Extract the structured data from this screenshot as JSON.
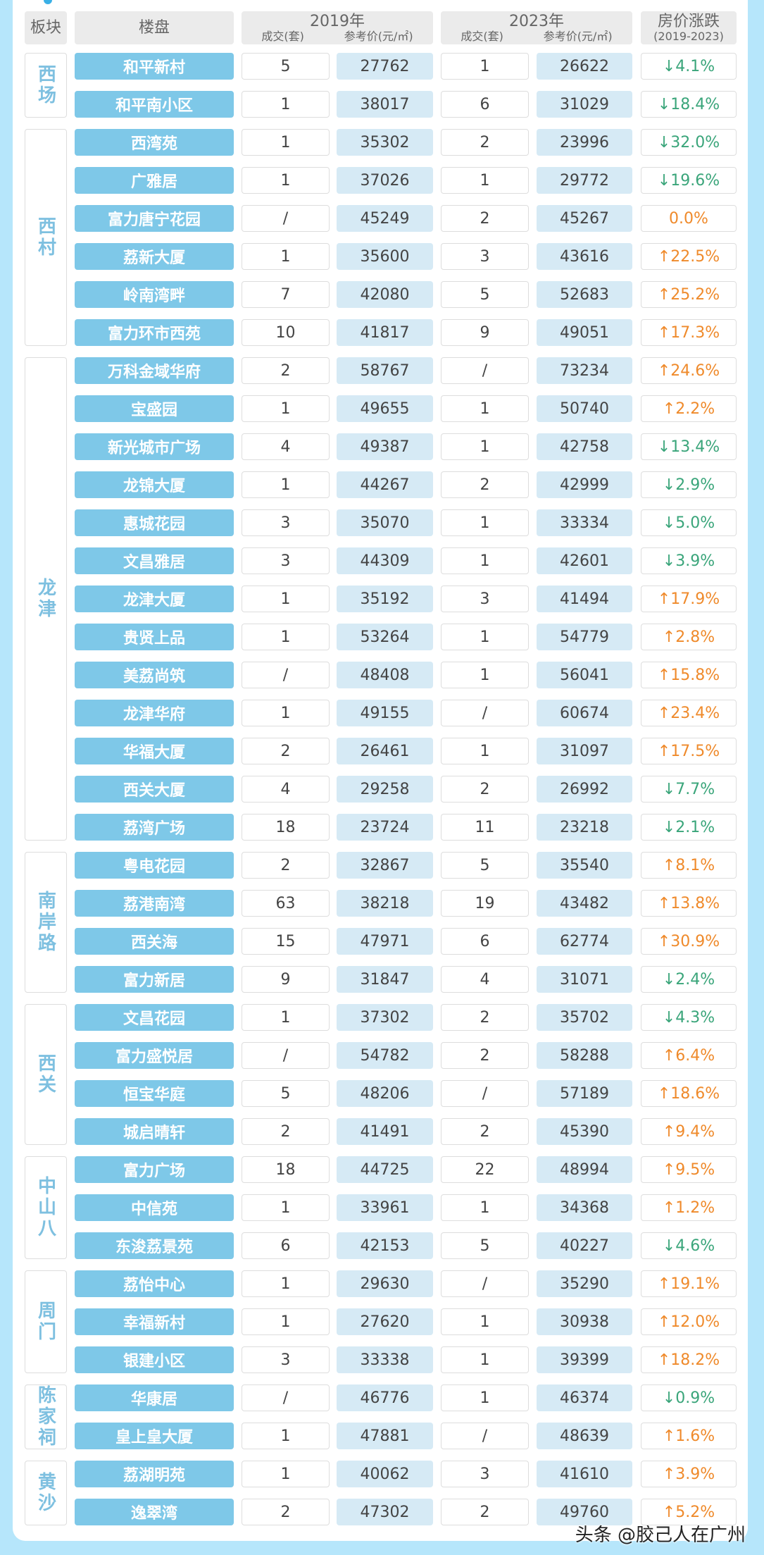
{
  "header": {
    "district": "板块",
    "estate": "楼盘",
    "y2019": "2019年",
    "y2023": "2023年",
    "deals": "成交(套)",
    "price": "参考价(元/㎡)",
    "change": "房价涨跌",
    "change_range": "(2019-2023)"
  },
  "colors": {
    "down": "#3aa57a",
    "up": "#ef8a2b",
    "name_bg": "#7ec8e8",
    "price_bg": "#d6eaf5"
  },
  "groups": [
    {
      "district": "西场",
      "rows": [
        {
          "name": "和平新村",
          "d2019": "5",
          "p2019": "27762",
          "d2023": "1",
          "p2023": "26622",
          "change": "↓4.1%",
          "dir": "down"
        },
        {
          "name": "和平南小区",
          "d2019": "1",
          "p2019": "38017",
          "d2023": "6",
          "p2023": "31029",
          "change": "↓18.4%",
          "dir": "down"
        }
      ]
    },
    {
      "district": "西村",
      "rows": [
        {
          "name": "西湾苑",
          "d2019": "1",
          "p2019": "35302",
          "d2023": "2",
          "p2023": "23996",
          "change": "↓32.0%",
          "dir": "down"
        },
        {
          "name": "广雅居",
          "d2019": "1",
          "p2019": "37026",
          "d2023": "1",
          "p2023": "29772",
          "change": "↓19.6%",
          "dir": "down"
        },
        {
          "name": "富力唐宁花园",
          "d2019": "/",
          "p2019": "45249",
          "d2023": "2",
          "p2023": "45267",
          "change": "0.0%",
          "dir": "flat"
        },
        {
          "name": "荔新大厦",
          "d2019": "1",
          "p2019": "35600",
          "d2023": "3",
          "p2023": "43616",
          "change": "↑22.5%",
          "dir": "up"
        },
        {
          "name": "岭南湾畔",
          "d2019": "7",
          "p2019": "42080",
          "d2023": "5",
          "p2023": "52683",
          "change": "↑25.2%",
          "dir": "up"
        },
        {
          "name": "富力环市西苑",
          "d2019": "10",
          "p2019": "41817",
          "d2023": "9",
          "p2023": "49051",
          "change": "↑17.3%",
          "dir": "up"
        }
      ]
    },
    {
      "district": "龙津",
      "rows": [
        {
          "name": "万科金域华府",
          "d2019": "2",
          "p2019": "58767",
          "d2023": "/",
          "p2023": "73234",
          "change": "↑24.6%",
          "dir": "up"
        },
        {
          "name": "宝盛园",
          "d2019": "1",
          "p2019": "49655",
          "d2023": "1",
          "p2023": "50740",
          "change": "↑2.2%",
          "dir": "up"
        },
        {
          "name": "新光城市广场",
          "d2019": "4",
          "p2019": "49387",
          "d2023": "1",
          "p2023": "42758",
          "change": "↓13.4%",
          "dir": "down"
        },
        {
          "name": "龙锦大厦",
          "d2019": "1",
          "p2019": "44267",
          "d2023": "2",
          "p2023": "42999",
          "change": "↓2.9%",
          "dir": "down"
        },
        {
          "name": "惠城花园",
          "d2019": "3",
          "p2019": "35070",
          "d2023": "1",
          "p2023": "33334",
          "change": "↓5.0%",
          "dir": "down"
        },
        {
          "name": "文昌雅居",
          "d2019": "3",
          "p2019": "44309",
          "d2023": "1",
          "p2023": "42601",
          "change": "↓3.9%",
          "dir": "down"
        },
        {
          "name": "龙津大厦",
          "d2019": "1",
          "p2019": "35192",
          "d2023": "3",
          "p2023": "41494",
          "change": "↑17.9%",
          "dir": "up"
        },
        {
          "name": "贵贤上品",
          "d2019": "1",
          "p2019": "53264",
          "d2023": "1",
          "p2023": "54779",
          "change": "↑2.8%",
          "dir": "up"
        },
        {
          "name": "美荔尚筑",
          "d2019": "/",
          "p2019": "48408",
          "d2023": "1",
          "p2023": "56041",
          "change": "↑15.8%",
          "dir": "up"
        },
        {
          "name": "龙津华府",
          "d2019": "1",
          "p2019": "49155",
          "d2023": "/",
          "p2023": "60674",
          "change": "↑23.4%",
          "dir": "up"
        },
        {
          "name": "华福大厦",
          "d2019": "2",
          "p2019": "26461",
          "d2023": "1",
          "p2023": "31097",
          "change": "↑17.5%",
          "dir": "up"
        },
        {
          "name": "西关大厦",
          "d2019": "4",
          "p2019": "29258",
          "d2023": "2",
          "p2023": "26992",
          "change": "↓7.7%",
          "dir": "down"
        },
        {
          "name": "荔湾广场",
          "d2019": "18",
          "p2019": "23724",
          "d2023": "11",
          "p2023": "23218",
          "change": "↓2.1%",
          "dir": "down"
        }
      ]
    },
    {
      "district": "南岸路",
      "rows": [
        {
          "name": "粤电花园",
          "d2019": "2",
          "p2019": "32867",
          "d2023": "5",
          "p2023": "35540",
          "change": "↑8.1%",
          "dir": "up"
        },
        {
          "name": "荔港南湾",
          "d2019": "63",
          "p2019": "38218",
          "d2023": "19",
          "p2023": "43482",
          "change": "↑13.8%",
          "dir": "up"
        },
        {
          "name": "西关海",
          "d2019": "15",
          "p2019": "47971",
          "d2023": "6",
          "p2023": "62774",
          "change": "↑30.9%",
          "dir": "up"
        },
        {
          "name": "富力新居",
          "d2019": "9",
          "p2019": "31847",
          "d2023": "4",
          "p2023": "31071",
          "change": "↓2.4%",
          "dir": "down"
        }
      ]
    },
    {
      "district": "西关",
      "rows": [
        {
          "name": "文昌花园",
          "d2019": "1",
          "p2019": "37302",
          "d2023": "2",
          "p2023": "35702",
          "change": "↓4.3%",
          "dir": "down"
        },
        {
          "name": "富力盛悦居",
          "d2019": "/",
          "p2019": "54782",
          "d2023": "2",
          "p2023": "58288",
          "change": "↑6.4%",
          "dir": "up"
        },
        {
          "name": "恒宝华庭",
          "d2019": "5",
          "p2019": "48206",
          "d2023": "/",
          "p2023": "57189",
          "change": "↑18.6%",
          "dir": "up"
        },
        {
          "name": "城启晴轩",
          "d2019": "2",
          "p2019": "41491",
          "d2023": "2",
          "p2023": "45390",
          "change": "↑9.4%",
          "dir": "up"
        }
      ]
    },
    {
      "district": "中山八",
      "rows": [
        {
          "name": "富力广场",
          "d2019": "18",
          "p2019": "44725",
          "d2023": "22",
          "p2023": "48994",
          "change": "↑9.5%",
          "dir": "up"
        },
        {
          "name": "中信苑",
          "d2019": "1",
          "p2019": "33961",
          "d2023": "1",
          "p2023": "34368",
          "change": "↑1.2%",
          "dir": "up"
        },
        {
          "name": "东浚荔景苑",
          "d2019": "6",
          "p2019": "42153",
          "d2023": "5",
          "p2023": "40227",
          "change": "↓4.6%",
          "dir": "down"
        }
      ]
    },
    {
      "district": "周门",
      "rows": [
        {
          "name": "荔怡中心",
          "d2019": "1",
          "p2019": "29630",
          "d2023": "/",
          "p2023": "35290",
          "change": "↑19.1%",
          "dir": "up"
        },
        {
          "name": "幸福新村",
          "d2019": "1",
          "p2019": "27620",
          "d2023": "1",
          "p2023": "30938",
          "change": "↑12.0%",
          "dir": "up"
        },
        {
          "name": "银建小区",
          "d2019": "3",
          "p2019": "33338",
          "d2023": "1",
          "p2023": "39399",
          "change": "↑18.2%",
          "dir": "up"
        }
      ]
    },
    {
      "district": "陈家祠",
      "rows": [
        {
          "name": "华康居",
          "d2019": "/",
          "p2019": "46776",
          "d2023": "1",
          "p2023": "46374",
          "change": "↓0.9%",
          "dir": "down"
        },
        {
          "name": "皇上皇大厦",
          "d2019": "1",
          "p2019": "47881",
          "d2023": "/",
          "p2023": "48639",
          "change": "↑1.6%",
          "dir": "up"
        }
      ]
    },
    {
      "district": "黄沙",
      "rows": [
        {
          "name": "荔湖明苑",
          "d2019": "1",
          "p2019": "40062",
          "d2023": "3",
          "p2023": "41610",
          "change": "↑3.9%",
          "dir": "up"
        },
        {
          "name": "逸翠湾",
          "d2019": "2",
          "p2019": "47302",
          "d2023": "2",
          "p2023": "49760",
          "change": "↑5.2%",
          "dir": "up"
        }
      ]
    }
  ],
  "watermark": "头条 @胶己人在广州"
}
